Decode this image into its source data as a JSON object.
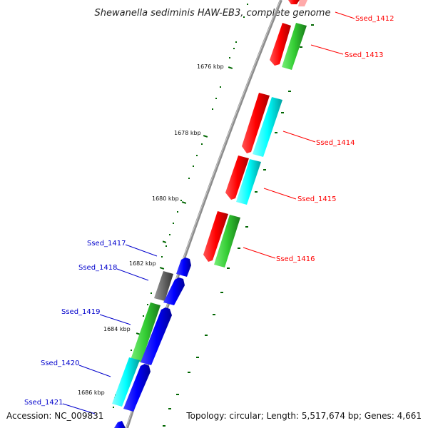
{
  "title": "Shewanella sediminis HAW-EB3, complete genome",
  "footer": {
    "accession": "Accession: NC_009831",
    "summary": "Topology: circular; Length: 5,517,674 bp; Genes: 4,661"
  },
  "colors": {
    "plus_label": "#ff0000",
    "minus_label": "#0000cc",
    "red": "#ff0000",
    "green": "#33cc33",
    "cyan": "#00ffff",
    "blue": "#0000ff",
    "gray": "#666666",
    "backbone": "#888888",
    "tick": "#006600"
  },
  "ticks": [
    {
      "label": "1676 kbp"
    },
    {
      "label": "1678 kbp"
    },
    {
      "label": "1680 kbp"
    },
    {
      "label": "1682 kbp"
    },
    {
      "label": "1684 kbp"
    },
    {
      "label": "1686 kbp"
    }
  ],
  "genes_plus": [
    {
      "name": "Ssed_1412"
    },
    {
      "name": "Ssed_1413"
    },
    {
      "name": "Ssed_1414"
    },
    {
      "name": "Ssed_1415"
    },
    {
      "name": "Ssed_1416"
    }
  ],
  "genes_minus": [
    {
      "name": "Ssed_1417"
    },
    {
      "name": "Ssed_1418"
    },
    {
      "name": "Ssed_1419"
    },
    {
      "name": "Ssed_1420"
    },
    {
      "name": "Ssed_1421"
    }
  ]
}
